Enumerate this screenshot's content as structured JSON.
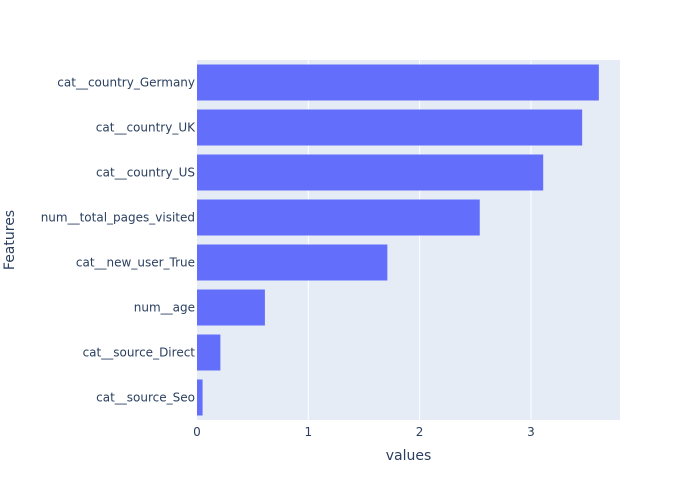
{
  "chart_data": {
    "type": "bar",
    "orientation": "horizontal",
    "categories": [
      "cat__source_Seo",
      "cat__source_Direct",
      "num__age",
      "cat__new_user_True",
      "num__total_pages_visited",
      "cat__country_US",
      "cat__country_UK",
      "cat__country_Germany"
    ],
    "values": [
      0.05,
      0.21,
      0.61,
      1.71,
      2.54,
      3.11,
      3.46,
      3.61
    ],
    "xlabel": "values",
    "ylabel": "Features",
    "xlim": [
      0,
      3.8
    ],
    "xticks": [
      0,
      1,
      2,
      3
    ],
    "grid": true,
    "colors": {
      "bar": "#636efa",
      "plot_background": "#e5ecf6",
      "grid": "#ffffff",
      "text": "#2a3f5f"
    }
  }
}
